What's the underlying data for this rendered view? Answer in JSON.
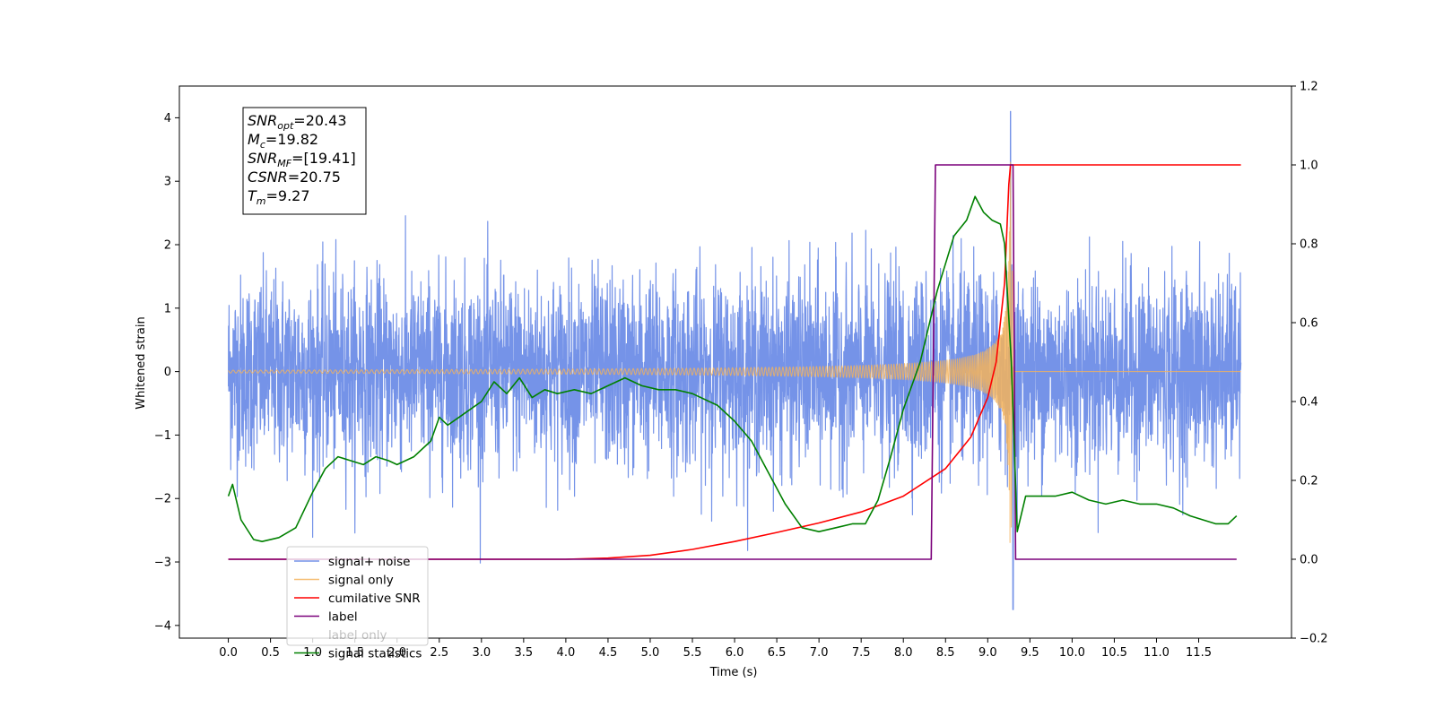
{
  "chart_data": {
    "type": "line",
    "xlabel": "Time (s)",
    "ylabel": "Whitened strain",
    "xlim": [
      -0.58,
      12.6
    ],
    "ylim": [
      -4.2,
      4.5
    ],
    "y2lim": [
      -0.2,
      1.2
    ],
    "x_ticks": [
      "0.0",
      "0.5",
      "1.0",
      "1.5",
      "2.0",
      "2.5",
      "3.0",
      "3.5",
      "4.0",
      "4.5",
      "5.0",
      "5.5",
      "6.0",
      "6.5",
      "7.0",
      "7.5",
      "8.0",
      "8.5",
      "9.0",
      "9.5",
      "10.0",
      "10.5",
      "11.0",
      "11.5"
    ],
    "y_ticks": [
      "4",
      "3",
      "2",
      "1",
      "0",
      "−1",
      "−2",
      "−3",
      "−4"
    ],
    "y2_ticks": [
      "1.2",
      "1.0",
      "0.8",
      "0.6",
      "0.4",
      "0.2",
      "0.0",
      "−0.2"
    ],
    "legend_placement": "lower-left",
    "grid": false,
    "annotation": {
      "lines": [
        {
          "main": "SNR",
          "sub": "opt",
          "rest": "=20.43"
        },
        {
          "main": "M",
          "sub": "c",
          "rest": "=19.82"
        },
        {
          "main": "SNR",
          "sub": "MF",
          "rest": "=[19.41]"
        },
        {
          "main": "CSNR",
          "sub": "",
          "rest": "=20.75"
        },
        {
          "main": "T",
          "sub": "m",
          "rest": "=9.27"
        }
      ]
    },
    "series": [
      {
        "name": "signal+ noise",
        "color": "#7593e8",
        "axis": "left",
        "kind": "noise",
        "t_range": [
          0.0,
          12.0
        ],
        "std": 0.75,
        "peak": [
          9.27,
          4.1
        ],
        "trough": [
          9.3,
          -3.75
        ]
      },
      {
        "name": "signal only",
        "color": "#f5b35b",
        "axis": "left",
        "kind": "chirp",
        "t_range": [
          0.0,
          12.0
        ],
        "merger_time": 9.27,
        "peak_amplitude": 3.3
      },
      {
        "name": "cumilative SNR",
        "color": "#ff0000",
        "axis": "right",
        "x": [
          0.0,
          4.0,
          4.5,
          5.0,
          5.5,
          6.0,
          6.5,
          7.0,
          7.5,
          8.0,
          8.5,
          8.8,
          9.0,
          9.1,
          9.2,
          9.25,
          9.27,
          12.0
        ],
        "y": [
          0.0,
          0.0,
          0.003,
          0.01,
          0.025,
          0.045,
          0.068,
          0.092,
          0.12,
          0.16,
          0.23,
          0.31,
          0.41,
          0.5,
          0.7,
          0.95,
          1.0,
          1.0
        ]
      },
      {
        "name": "label",
        "color": "#7b007b",
        "axis": "right",
        "x": [
          0.0,
          8.33,
          8.38,
          9.3,
          9.33,
          11.95
        ],
        "y": [
          0.0,
          0.0,
          1.0,
          1.0,
          0.0,
          0.0
        ]
      },
      {
        "name": "label only",
        "color": "#7b007b",
        "axis": "right",
        "hidden": true,
        "x": [],
        "y": []
      },
      {
        "name": "signal statistics",
        "color": "#008000",
        "axis": "right",
        "x": [
          0.0,
          0.05,
          0.15,
          0.3,
          0.4,
          0.6,
          0.8,
          1.0,
          1.15,
          1.3,
          1.45,
          1.6,
          1.75,
          1.9,
          2.0,
          2.2,
          2.4,
          2.5,
          2.6,
          2.8,
          3.0,
          3.15,
          3.3,
          3.45,
          3.6,
          3.75,
          3.9,
          4.1,
          4.3,
          4.5,
          4.7,
          4.9,
          5.1,
          5.3,
          5.5,
          5.8,
          6.0,
          6.2,
          6.4,
          6.6,
          6.8,
          7.0,
          7.2,
          7.4,
          7.55,
          7.7,
          7.85,
          8.0,
          8.2,
          8.4,
          8.6,
          8.75,
          8.85,
          8.95,
          9.05,
          9.15,
          9.2,
          9.28,
          9.35,
          9.45,
          9.6,
          9.8,
          10.0,
          10.2,
          10.4,
          10.6,
          10.8,
          11.0,
          11.2,
          11.4,
          11.55,
          11.7,
          11.85,
          11.95
        ],
        "y": [
          0.16,
          0.19,
          0.1,
          0.05,
          0.045,
          0.055,
          0.08,
          0.17,
          0.23,
          0.26,
          0.25,
          0.24,
          0.26,
          0.25,
          0.24,
          0.26,
          0.3,
          0.36,
          0.34,
          0.37,
          0.4,
          0.45,
          0.42,
          0.46,
          0.41,
          0.43,
          0.42,
          0.43,
          0.42,
          0.44,
          0.46,
          0.44,
          0.43,
          0.43,
          0.42,
          0.39,
          0.35,
          0.3,
          0.22,
          0.14,
          0.08,
          0.07,
          0.08,
          0.09,
          0.09,
          0.15,
          0.26,
          0.38,
          0.5,
          0.68,
          0.82,
          0.86,
          0.92,
          0.88,
          0.86,
          0.85,
          0.8,
          0.5,
          0.07,
          0.16,
          0.16,
          0.16,
          0.17,
          0.15,
          0.14,
          0.15,
          0.14,
          0.14,
          0.13,
          0.11,
          0.1,
          0.09,
          0.09,
          0.11
        ]
      }
    ]
  }
}
